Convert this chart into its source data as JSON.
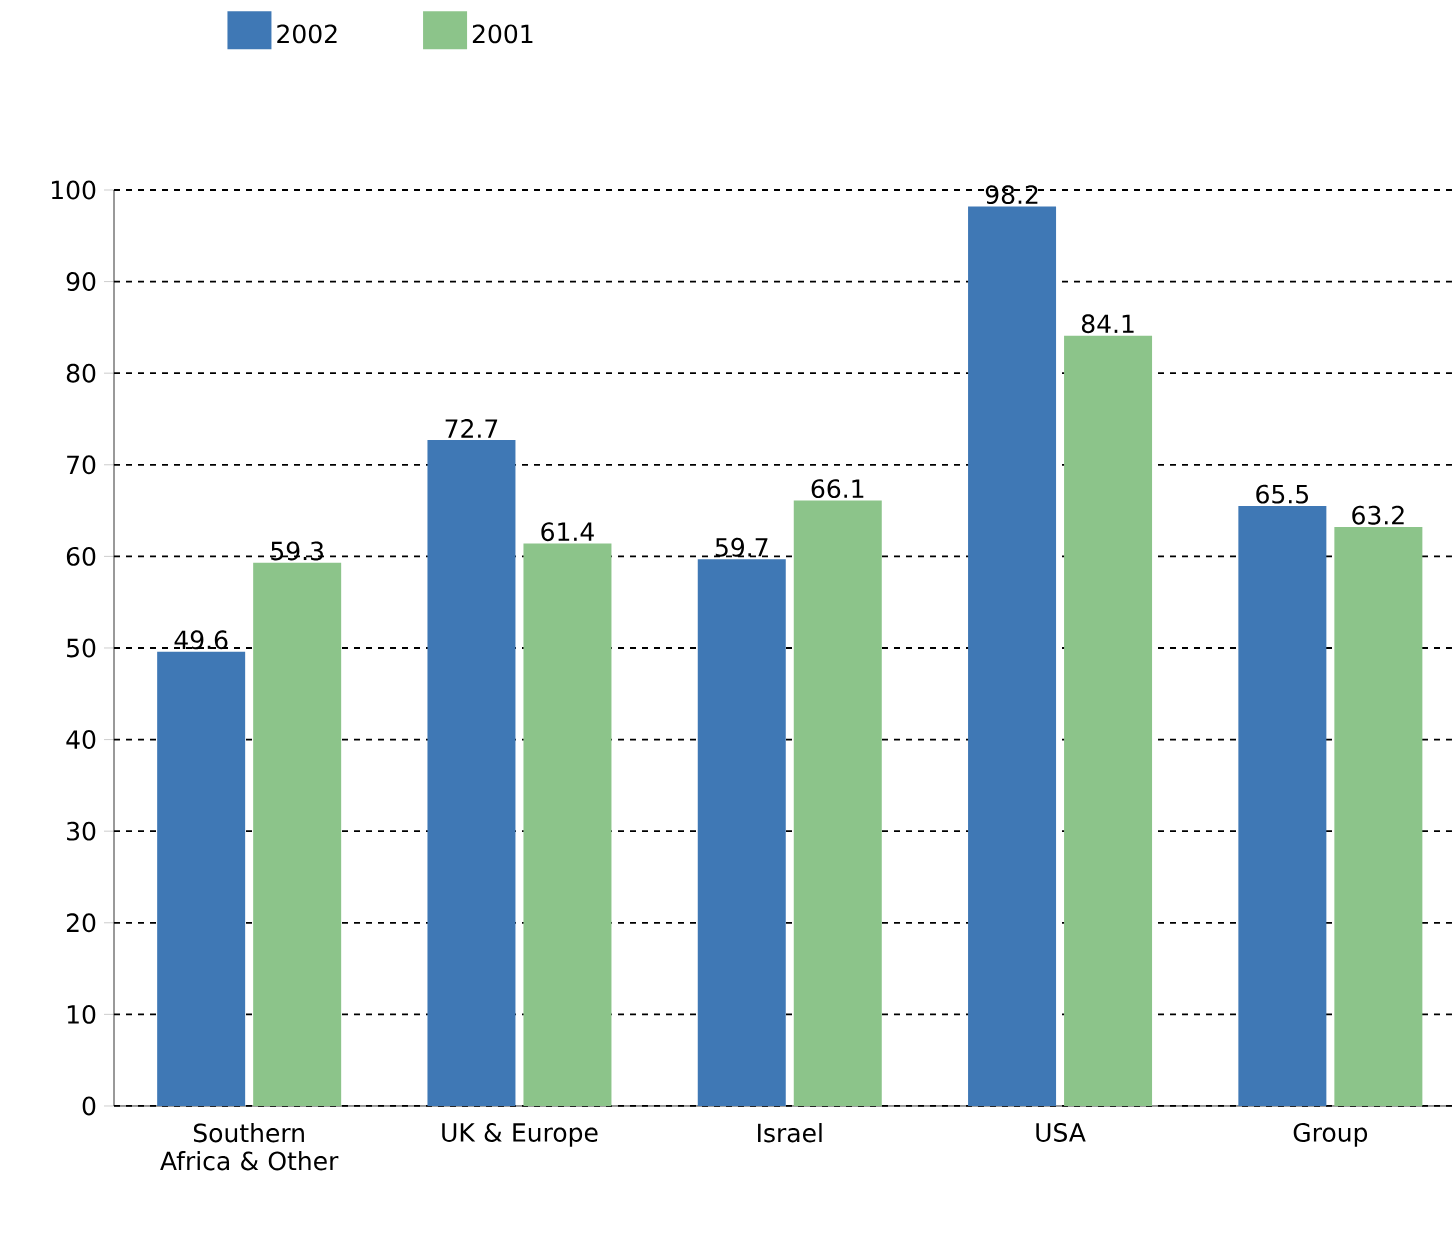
{
  "chart_data": {
    "type": "bar",
    "categories": [
      "Southern Africa & Other",
      "UK & Europe",
      "Israel",
      "USA",
      "Group"
    ],
    "series": [
      {
        "name": "2002",
        "color": "#3f78b5",
        "values": [
          49.6,
          72.7,
          59.7,
          98.2,
          65.5
        ]
      },
      {
        "name": "2001",
        "color": "#8cc48a",
        "values": [
          59.3,
          61.4,
          66.1,
          84.1,
          63.2
        ]
      }
    ],
    "ylim": [
      0,
      100
    ],
    "yticks": [
      0,
      10,
      20,
      30,
      40,
      50,
      60,
      70,
      80,
      90,
      100
    ],
    "grid": "y",
    "legend": "top left",
    "data_labels": true
  }
}
